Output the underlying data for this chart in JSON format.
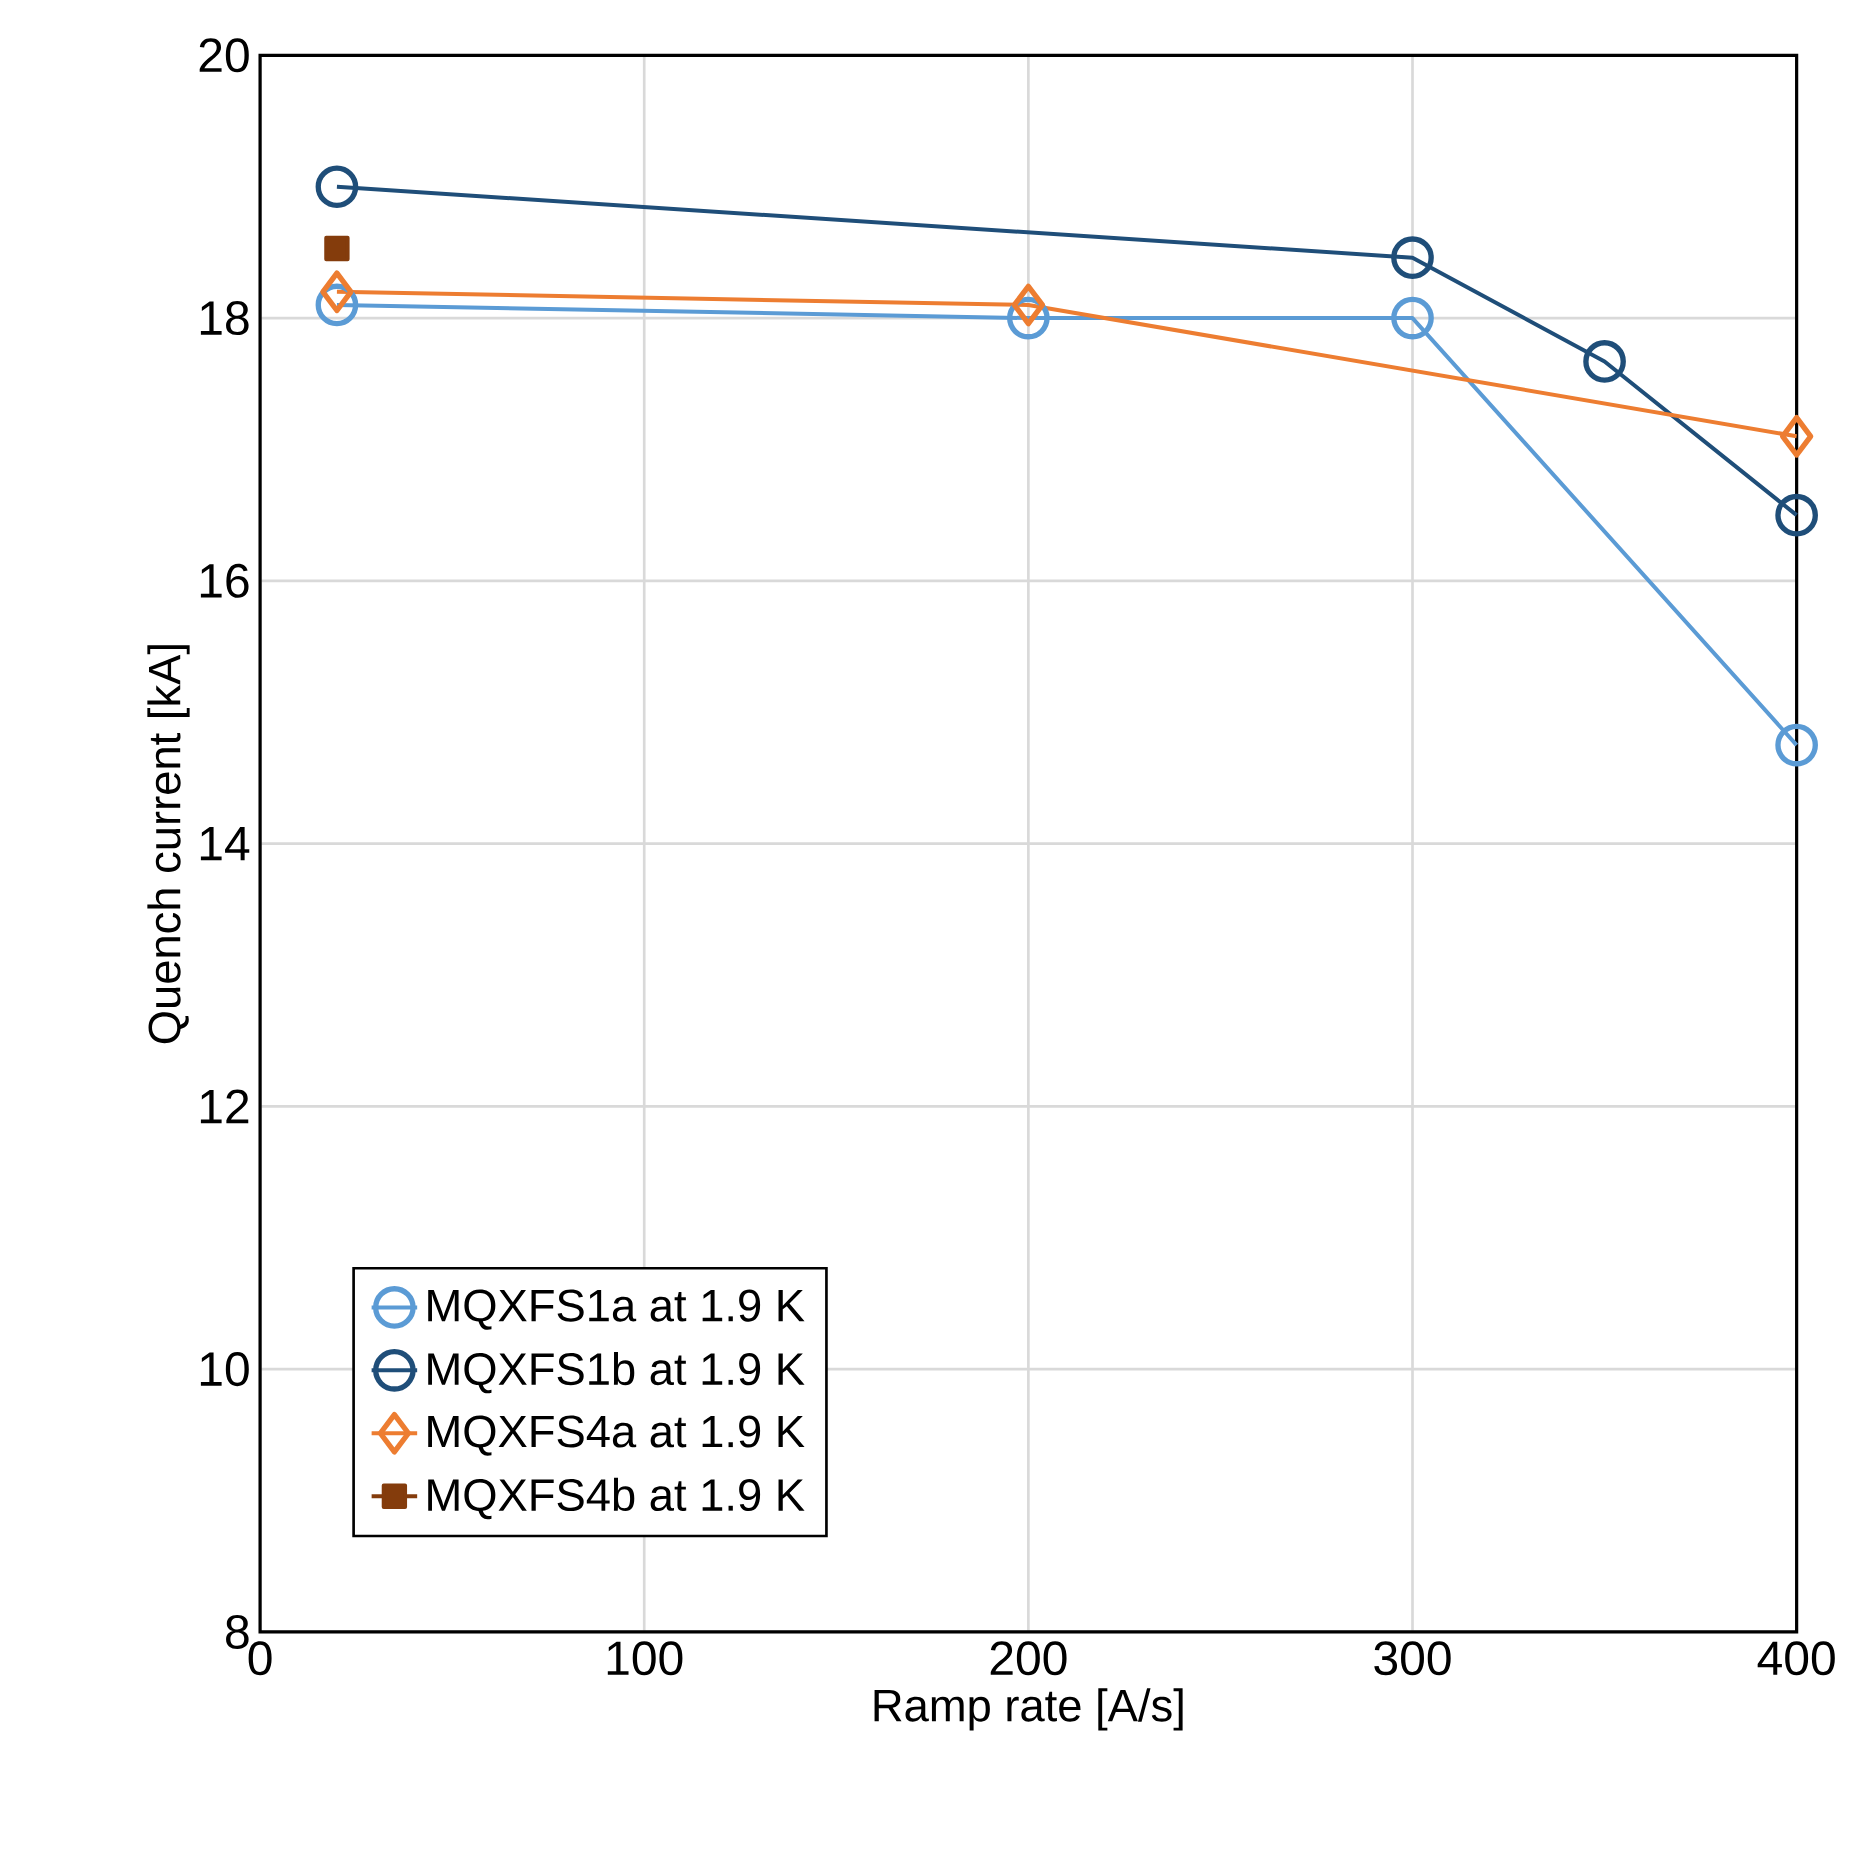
{
  "chart_data": {
    "type": "line",
    "xlabel": "Ramp rate [A/s]",
    "ylabel": "Quench current [kA]",
    "xlim": [
      0,
      400
    ],
    "xticks": [
      0,
      100,
      200,
      300,
      400
    ],
    "ylim": [
      8,
      20
    ],
    "yticks": [
      8,
      10,
      12,
      14,
      16,
      18,
      20
    ],
    "grid": true,
    "legend": "bottom left",
    "line_style": "solid",
    "series": [
      {
        "name": "MQXFS1a at 1.9 K",
        "color": "#5b9bd5",
        "marker": "circle",
        "x": [
          20,
          200,
          300,
          400
        ],
        "values": [
          18.1,
          18.0,
          18.0,
          14.75
        ]
      },
      {
        "name": "MQXFS1b at 1.9 K",
        "color": "#1f4e79",
        "marker": "circle",
        "x": [
          20,
          300,
          350,
          400
        ],
        "values": [
          19.0,
          18.46,
          17.67,
          16.5
        ]
      },
      {
        "name": "MQXFS4a at 1.9 K",
        "color": "#ed7d31",
        "marker": "diamond",
        "x": [
          20,
          200,
          400
        ],
        "values": [
          18.2,
          18.1,
          17.1
        ]
      },
      {
        "name": "MQXFS4b at 1.9 K",
        "color": "#843c0c",
        "marker": "square",
        "x": [
          20
        ],
        "values": [
          18.53
        ]
      }
    ]
  }
}
